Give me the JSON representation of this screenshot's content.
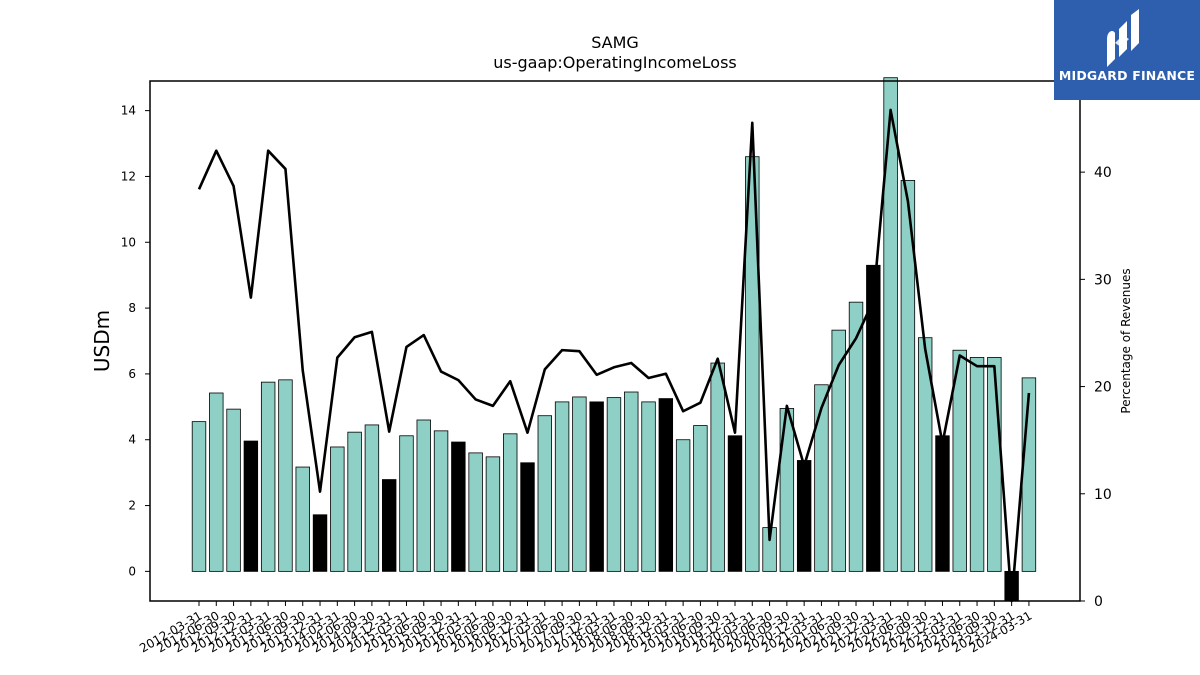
{
  "chart_data": {
    "type": "bar",
    "title": "SAMG",
    "subtitle": "us-gaap:OperatingIncomeLoss",
    "ylabel": "USDm",
    "ylabel_right": "Percentage of Revenues",
    "ylim": [
      -0.9,
      14.9
    ],
    "ylim_right": [
      0,
      48.5
    ],
    "yticks": [
      0,
      2,
      4,
      6,
      8,
      10,
      12,
      14
    ],
    "yticks_right": [
      0,
      10,
      20,
      30,
      40
    ],
    "categories": [
      "2012-03-31",
      "2012-06-30",
      "2012-09-30",
      "2012-12-31",
      "2013-03-31",
      "2013-06-30",
      "2013-09-30",
      "2013-12-31",
      "2014-03-31",
      "2014-06-30",
      "2014-09-30",
      "2014-12-31",
      "2015-03-31",
      "2015-06-30",
      "2015-09-30",
      "2015-12-31",
      "2016-03-31",
      "2016-06-30",
      "2016-09-30",
      "2016-12-31",
      "2017-03-31",
      "2017-06-30",
      "2017-09-30",
      "2017-12-31",
      "2018-03-31",
      "2018-06-30",
      "2018-09-30",
      "2018-12-31",
      "2019-03-31",
      "2019-06-30",
      "2019-09-30",
      "2019-12-31",
      "2020-03-31",
      "2020-06-30",
      "2020-09-30",
      "2020-12-31",
      "2021-03-31",
      "2021-06-30",
      "2021-09-30",
      "2021-12-31",
      "2022-03-31",
      "2022-06-30",
      "2022-09-30",
      "2022-12-31",
      "2023-03-31",
      "2023-06-30",
      "2023-09-30",
      "2023-12-31",
      "2024-03-31"
    ],
    "series": [
      {
        "values": [
          4.55,
          5.42,
          4.93,
          3.96,
          5.75,
          5.82,
          3.17,
          1.72,
          3.78,
          4.23,
          4.45,
          2.79,
          4.12,
          4.6,
          4.27,
          3.93,
          3.6,
          3.48,
          4.18,
          3.3,
          4.73,
          5.15,
          5.3,
          5.15,
          5.28,
          5.45,
          5.15,
          5.25,
          4.0,
          4.43,
          6.33,
          4.12,
          12.6,
          1.33,
          4.95,
          3.37,
          5.67,
          7.33,
          8.18,
          9.3,
          15.0,
          11.88,
          7.1,
          4.12,
          6.72,
          6.5,
          6.5,
          -0.9,
          5.88
        ]
      },
      {
        "values": [
          38.4,
          42.0,
          38.7,
          28.3,
          42.0,
          40.3,
          21.5,
          10.2,
          22.7,
          24.6,
          25.1,
          15.8,
          23.7,
          24.8,
          21.4,
          20.6,
          18.8,
          18.2,
          20.5,
          15.7,
          21.6,
          23.4,
          23.3,
          21.1,
          21.8,
          22.2,
          20.8,
          21.2,
          17.7,
          18.5,
          22.6,
          15.7,
          44.6,
          5.7,
          18.2,
          12.6,
          18.0,
          22.0,
          24.5,
          28.0,
          45.8,
          37.3,
          23.5,
          14.7,
          22.9,
          21.9,
          21.9,
          0.0,
          19.4
        ]
      }
    ],
    "annual_bar_color": "#000000",
    "bar_color": "#8ed0c5",
    "line_color": "#000000"
  },
  "brand": {
    "name": "MIDGARD FINANCE",
    "color": "#2d5fae"
  }
}
